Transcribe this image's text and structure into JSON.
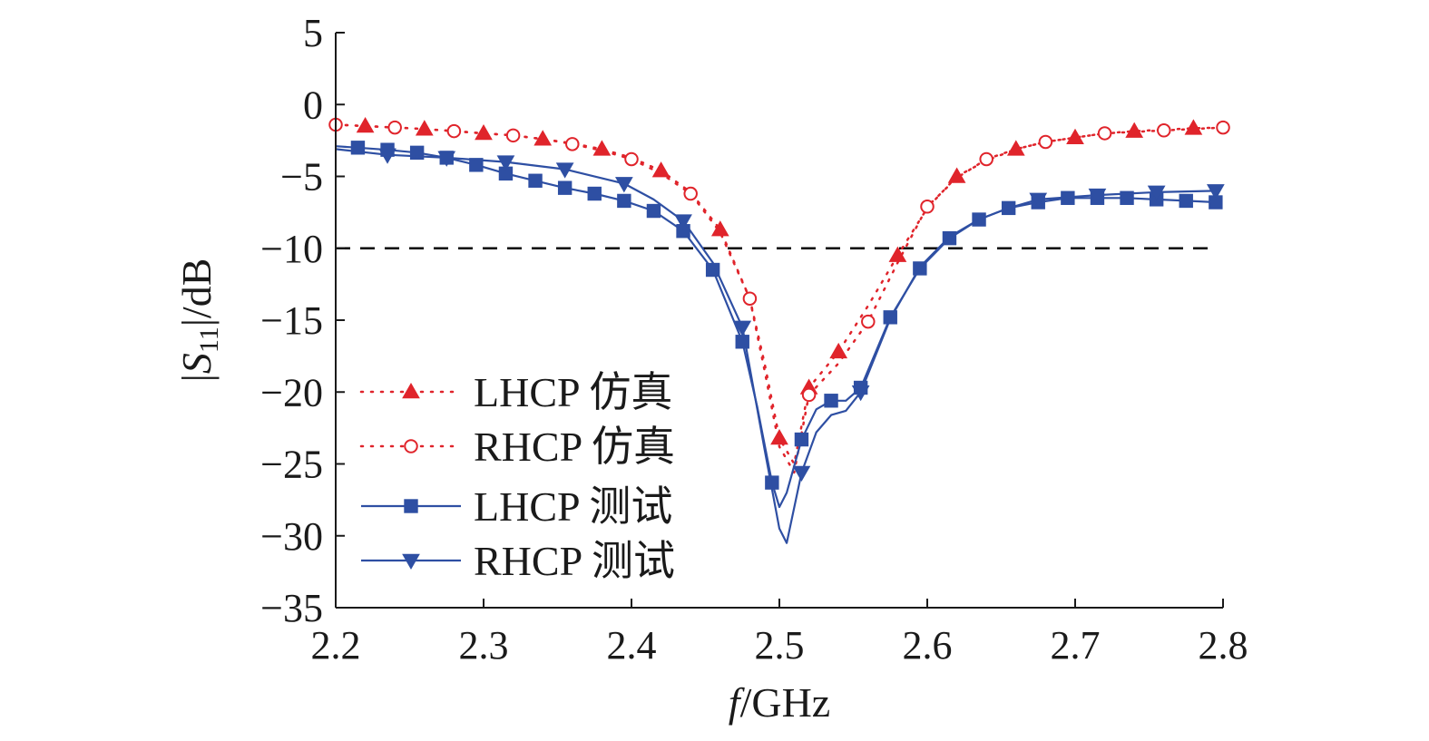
{
  "chart_data": {
    "type": "line",
    "title": "",
    "xlabel_italic": "f",
    "xlabel_rest": "/GHz",
    "ylabel_prefix": "|",
    "ylabel_symbol": "S",
    "ylabel_subscript": "11",
    "ylabel_suffix": "|/dB",
    "xlim": [
      2.2,
      2.8
    ],
    "ylim": [
      -35,
      5
    ],
    "x_ticks": [
      2.2,
      2.3,
      2.4,
      2.5,
      2.6,
      2.7,
      2.8
    ],
    "x_tick_labels": [
      "2.2",
      "2.3",
      "2.4",
      "2.5",
      "2.6",
      "2.7",
      "2.8"
    ],
    "y_ticks": [
      5,
      0,
      -5,
      -10,
      -15,
      -20,
      -25,
      -30,
      -35
    ],
    "y_tick_labels": [
      "5",
      "0",
      "−5",
      "−10",
      "−15",
      "−20",
      "−25",
      "−30",
      "−35"
    ],
    "grid": false,
    "legend_position": "center-left",
    "reference_line": {
      "y": -10,
      "style": "dashed",
      "color": "#000000",
      "x_range": [
        2.2,
        2.79
      ]
    },
    "series": [
      {
        "name": "LHCP 仿真",
        "color": "#e0242b",
        "line_style": "dotted",
        "marker": "triangle-up",
        "marker_fill": "filled",
        "x": [
          2.2,
          2.22,
          2.24,
          2.26,
          2.28,
          2.3,
          2.32,
          2.34,
          2.36,
          2.38,
          2.4,
          2.42,
          2.44,
          2.46,
          2.48,
          2.49,
          2.5,
          2.51,
          2.52,
          2.54,
          2.56,
          2.58,
          2.6,
          2.62,
          2.64,
          2.66,
          2.68,
          2.7,
          2.72,
          2.74,
          2.76,
          2.78,
          2.8
        ],
        "y": [
          -1.4,
          -1.5,
          -1.6,
          -1.7,
          -1.85,
          -2.0,
          -2.15,
          -2.4,
          -2.7,
          -3.1,
          -3.7,
          -4.6,
          -6.1,
          -8.7,
          -13.5,
          -18.0,
          -23.2,
          -25.0,
          -19.7,
          -17.2,
          -14.0,
          -10.5,
          -7.2,
          -5.0,
          -3.9,
          -3.1,
          -2.6,
          -2.3,
          -2.0,
          -1.85,
          -1.75,
          -1.65,
          -1.6
        ],
        "marker_x": [
          2.22,
          2.26,
          2.3,
          2.34,
          2.38,
          2.42,
          2.46,
          2.5,
          2.52,
          2.54,
          2.58,
          2.62,
          2.66,
          2.7,
          2.74,
          2.78
        ]
      },
      {
        "name": "RHCP 仿真",
        "color": "#e0242b",
        "line_style": "dotted",
        "marker": "circle",
        "marker_fill": "open",
        "x": [
          2.2,
          2.22,
          2.24,
          2.26,
          2.28,
          2.3,
          2.32,
          2.34,
          2.36,
          2.38,
          2.4,
          2.42,
          2.44,
          2.46,
          2.48,
          2.49,
          2.5,
          2.51,
          2.52,
          2.54,
          2.56,
          2.58,
          2.6,
          2.62,
          2.64,
          2.66,
          2.68,
          2.7,
          2.72,
          2.74,
          2.76,
          2.78,
          2.8
        ],
        "y": [
          -1.4,
          -1.5,
          -1.6,
          -1.7,
          -1.85,
          -2.0,
          -2.15,
          -2.4,
          -2.75,
          -3.2,
          -3.8,
          -4.8,
          -6.2,
          -8.9,
          -13.5,
          -18.5,
          -23.8,
          -25.6,
          -20.2,
          -18.0,
          -15.1,
          -11.0,
          -7.1,
          -5.1,
          -3.8,
          -3.1,
          -2.6,
          -2.3,
          -2.0,
          -1.9,
          -1.8,
          -1.7,
          -1.6
        ],
        "marker_x": [
          2.2,
          2.24,
          2.28,
          2.32,
          2.36,
          2.4,
          2.44,
          2.48,
          2.52,
          2.56,
          2.6,
          2.64,
          2.68,
          2.72,
          2.76,
          2.8
        ]
      },
      {
        "name": "LHCP 测试",
        "color": "#2e4fa3",
        "line_style": "solid",
        "marker": "square",
        "marker_fill": "filled",
        "x": [
          2.2,
          2.215,
          2.235,
          2.255,
          2.275,
          2.295,
          2.315,
          2.335,
          2.355,
          2.375,
          2.395,
          2.415,
          2.435,
          2.455,
          2.475,
          2.485,
          2.495,
          2.5,
          2.505,
          2.515,
          2.525,
          2.535,
          2.545,
          2.555,
          2.575,
          2.595,
          2.615,
          2.635,
          2.655,
          2.675,
          2.695,
          2.715,
          2.735,
          2.755,
          2.775,
          2.795
        ],
        "y": [
          -2.9,
          -3.0,
          -3.15,
          -3.35,
          -3.7,
          -4.2,
          -4.8,
          -5.3,
          -5.8,
          -6.2,
          -6.7,
          -7.4,
          -8.8,
          -11.5,
          -16.5,
          -21.0,
          -26.3,
          -28.0,
          -27.0,
          -23.3,
          -21.2,
          -20.6,
          -20.6,
          -19.7,
          -14.8,
          -11.4,
          -9.3,
          -8.0,
          -7.2,
          -6.8,
          -6.5,
          -6.5,
          -6.5,
          -6.6,
          -6.7,
          -6.8
        ],
        "marker_x": [
          2.215,
          2.235,
          2.255,
          2.275,
          2.295,
          2.315,
          2.335,
          2.355,
          2.375,
          2.395,
          2.415,
          2.435,
          2.455,
          2.475,
          2.495,
          2.515,
          2.535,
          2.555,
          2.575,
          2.595,
          2.615,
          2.635,
          2.655,
          2.675,
          2.695,
          2.715,
          2.735,
          2.755,
          2.775,
          2.795
        ]
      },
      {
        "name": "RHCP 测试",
        "color": "#2e4fa3",
        "line_style": "solid",
        "marker": "triangle-down",
        "marker_fill": "filled",
        "x": [
          2.2,
          2.235,
          2.275,
          2.315,
          2.355,
          2.395,
          2.415,
          2.435,
          2.455,
          2.475,
          2.49,
          2.5,
          2.505,
          2.515,
          2.525,
          2.535,
          2.545,
          2.555,
          2.575,
          2.595,
          2.615,
          2.635,
          2.655,
          2.675,
          2.715,
          2.755,
          2.795
        ],
        "y": [
          -3.1,
          -3.5,
          -3.7,
          -4.0,
          -4.5,
          -5.5,
          -6.6,
          -8.1,
          -11.0,
          -15.5,
          -24.0,
          -29.5,
          -30.5,
          -25.6,
          -22.8,
          -21.6,
          -21.3,
          -20.0,
          -14.9,
          -11.3,
          -9.2,
          -8.0,
          -7.2,
          -6.6,
          -6.3,
          -6.1,
          -6.0
        ],
        "marker_x": [
          2.235,
          2.275,
          2.315,
          2.355,
          2.395,
          2.435,
          2.475,
          2.515,
          2.555,
          2.675,
          2.715,
          2.755,
          2.795
        ]
      }
    ]
  }
}
